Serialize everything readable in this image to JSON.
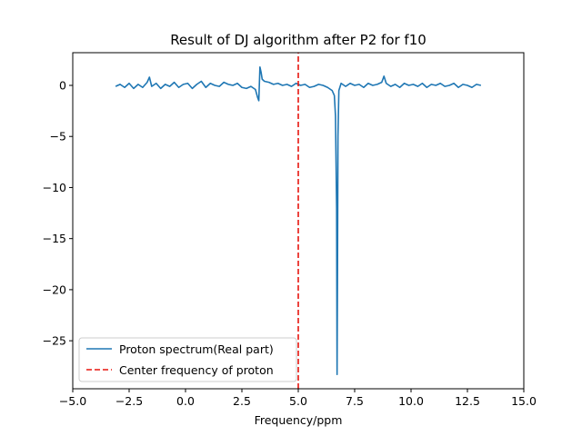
{
  "chart_data": {
    "type": "line",
    "title": "Result of DJ algorithm after P2 for f10",
    "xlabel": "Frequency/ppm",
    "ylabel": "",
    "xlim": [
      -5.0,
      15.0
    ],
    "ylim": [
      -29.7,
      3.2
    ],
    "xticks": [
      "−5.0",
      "−2.5",
      "0.0",
      "2.5",
      "5.0",
      "7.5",
      "10.0",
      "12.5",
      "15.0"
    ],
    "xtick_values": [
      -5.0,
      -2.5,
      0.0,
      2.5,
      5.0,
      7.5,
      10.0,
      12.5,
      15.0
    ],
    "yticks": [
      "0",
      "−5",
      "−10",
      "−15",
      "−20",
      "−25"
    ],
    "ytick_values": [
      0,
      -5,
      -10,
      -15,
      -20,
      -25
    ],
    "grid": false,
    "legend_position": "lower-left",
    "series": [
      {
        "name": "Proton spectrum(Real part)",
        "color": "#1f77b4",
        "style": "solid",
        "x": [
          -3.1,
          -2.9,
          -2.7,
          -2.5,
          -2.3,
          -2.1,
          -1.9,
          -1.7,
          -1.6,
          -1.5,
          -1.3,
          -1.1,
          -0.9,
          -0.7,
          -0.5,
          -0.3,
          -0.1,
          0.1,
          0.3,
          0.5,
          0.7,
          0.9,
          1.1,
          1.3,
          1.5,
          1.7,
          1.9,
          2.1,
          2.3,
          2.5,
          2.7,
          2.9,
          3.1,
          3.2,
          3.25,
          3.3,
          3.35,
          3.4,
          3.5,
          3.7,
          3.9,
          4.1,
          4.3,
          4.5,
          4.7,
          4.9,
          5.1,
          5.3,
          5.5,
          5.7,
          5.9,
          6.1,
          6.3,
          6.5,
          6.6,
          6.65,
          6.7,
          6.72,
          6.74,
          6.76,
          6.8,
          6.9,
          7.1,
          7.3,
          7.5,
          7.7,
          7.9,
          8.1,
          8.3,
          8.5,
          8.7,
          8.8,
          8.9,
          9.1,
          9.3,
          9.5,
          9.7,
          9.9,
          10.1,
          10.3,
          10.5,
          10.7,
          10.9,
          11.1,
          11.3,
          11.5,
          11.7,
          11.9,
          12.1,
          12.3,
          12.5,
          12.7,
          12.9,
          13.1
        ],
        "y": [
          -0.1,
          0.1,
          -0.2,
          0.2,
          -0.3,
          0.1,
          -0.2,
          0.3,
          0.8,
          -0.1,
          0.2,
          -0.3,
          0.1,
          -0.1,
          0.3,
          -0.2,
          0.1,
          0.2,
          -0.3,
          0.1,
          0.4,
          -0.2,
          0.2,
          0.0,
          -0.1,
          0.3,
          0.1,
          0.0,
          0.2,
          -0.2,
          -0.3,
          -0.1,
          -0.4,
          -1.2,
          -1.5,
          1.8,
          1.3,
          0.6,
          0.4,
          0.3,
          0.1,
          0.2,
          0.0,
          0.1,
          -0.1,
          0.2,
          0.0,
          0.1,
          -0.2,
          -0.1,
          0.1,
          0.0,
          -0.2,
          -0.5,
          -1.0,
          -3.0,
          -12.0,
          -28.3,
          -18.0,
          -5.0,
          -0.5,
          0.2,
          -0.1,
          0.2,
          0.0,
          0.1,
          -0.2,
          0.2,
          0.0,
          0.1,
          0.3,
          0.9,
          0.2,
          -0.1,
          0.1,
          -0.2,
          0.2,
          0.0,
          0.1,
          -0.1,
          0.2,
          -0.2,
          0.1,
          0.0,
          0.2,
          -0.1,
          0.0,
          0.2,
          -0.2,
          0.1,
          0.0,
          -0.2,
          0.1,
          0.0
        ]
      },
      {
        "name": "Center frequency of proton",
        "color": "#e8150f",
        "style": "dashed",
        "x": [
          5.0,
          5.0
        ],
        "y": [
          -29.7,
          3.2
        ]
      }
    ]
  }
}
